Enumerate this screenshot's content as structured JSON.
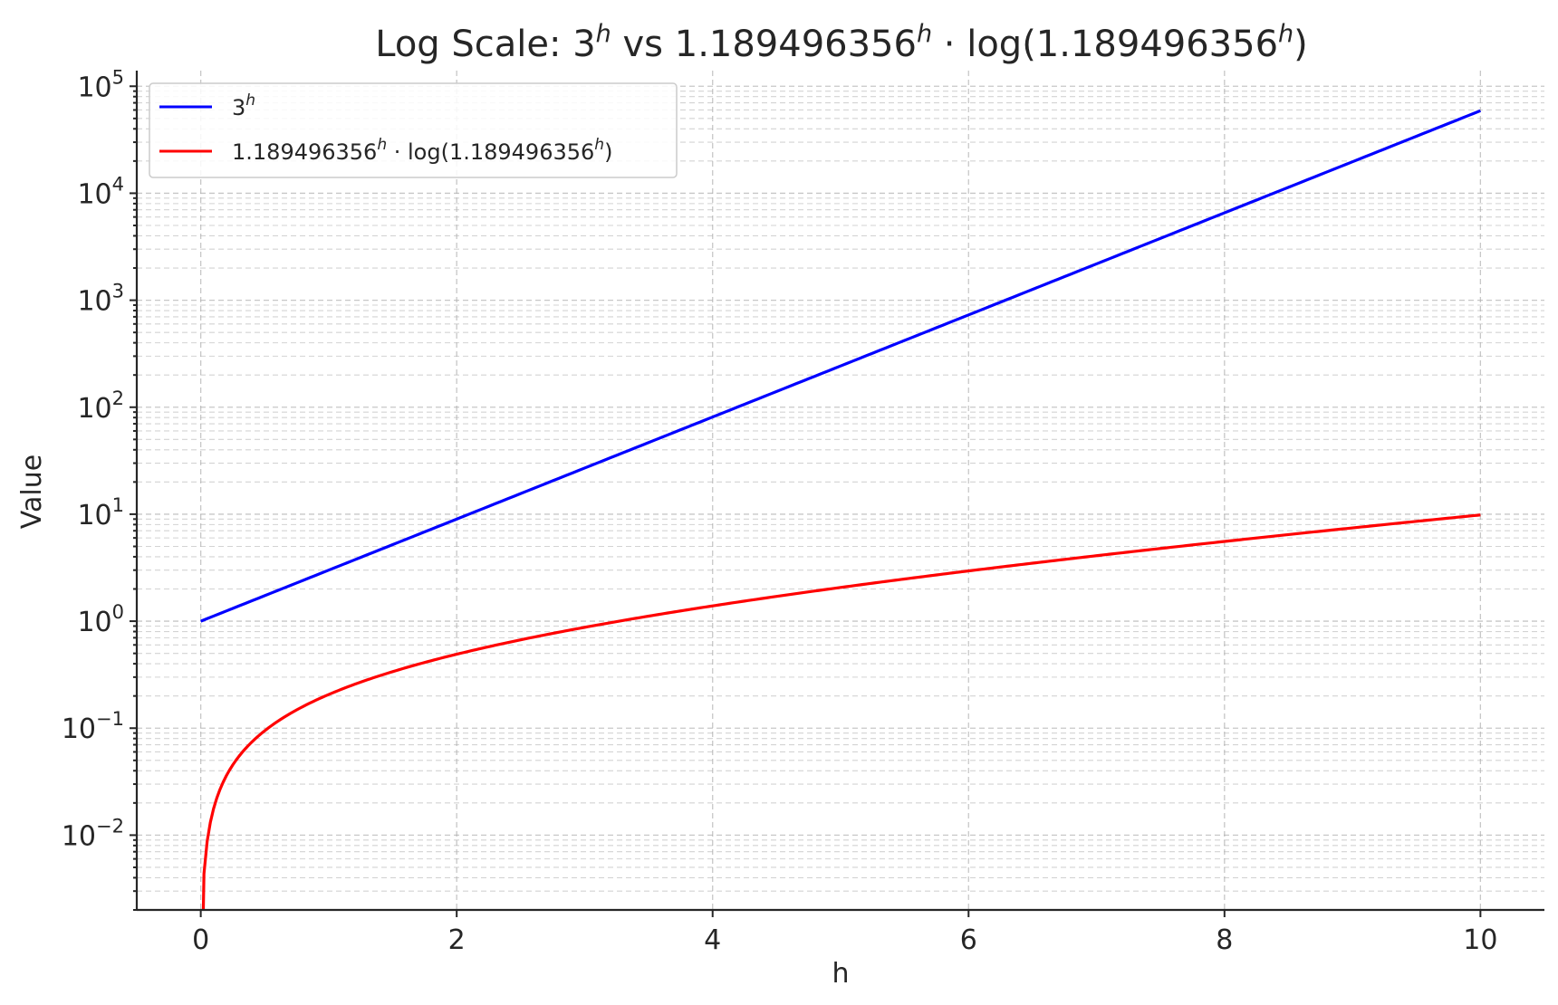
{
  "chart_data": {
    "type": "line",
    "title": "Log Scale: 3^h vs 1.189496356^h · log(1.189496356^h)",
    "title_parts": {
      "prefix": "Log Scale: 3",
      "sup1": "h",
      "mid": " vs 1.189496356",
      "sup2": "h",
      "dot": " · log(1.189496356",
      "sup3": "h",
      "suffix": ")"
    },
    "xlabel": "h",
    "ylabel": "Value",
    "xscale": "linear",
    "yscale": "log",
    "xlim": [
      -0.5,
      10.5
    ],
    "ylim": [
      0.002,
      140000
    ],
    "grid": true,
    "legend_position": "top-left",
    "x_ticks": [
      0,
      2,
      4,
      6,
      8,
      10
    ],
    "x_tick_labels": [
      "0",
      "2",
      "4",
      "6",
      "8",
      "10"
    ],
    "y_ticks": [
      {
        "value": 0.01,
        "base": "10",
        "exp": "−2"
      },
      {
        "value": 0.1,
        "base": "10",
        "exp": "−1"
      },
      {
        "value": 1,
        "base": "10",
        "exp": "0"
      },
      {
        "value": 10,
        "base": "10",
        "exp": "1"
      },
      {
        "value": 100,
        "base": "10",
        "exp": "2"
      },
      {
        "value": 1000,
        "base": "10",
        "exp": "3"
      },
      {
        "value": 10000,
        "base": "10",
        "exp": "4"
      },
      {
        "value": 100000,
        "base": "10",
        "exp": "5"
      }
    ],
    "series": [
      {
        "name": "3^h",
        "legend": {
          "base": "3",
          "sup": "h",
          "rest": ""
        },
        "color": "#0000ff",
        "function": "3^h",
        "x_range": [
          0,
          10
        ],
        "samples": 201
      },
      {
        "name": "1.189496356^h · log(1.189496356^h)",
        "legend": {
          "base": "1.189496356",
          "sup": "h",
          "rest": " · log(1.189496356",
          "sup2": "h",
          "rest2": ")"
        },
        "color": "#ff0000",
        "function": "1.189496356^h * ln(1.189496356^h)",
        "x_range": [
          0,
          10
        ],
        "samples": 401
      }
    ],
    "key_points": {
      "3^h": [
        [
          0,
          1
        ],
        [
          2,
          9
        ],
        [
          4,
          81
        ],
        [
          6,
          729
        ],
        [
          8,
          6561
        ],
        [
          10,
          59049
        ]
      ],
      "1.189496356^h · log(1.189496356^h)": [
        [
          1,
          0.206
        ],
        [
          2,
          0.49
        ],
        [
          4,
          1.39
        ],
        [
          6,
          2.94
        ],
        [
          8,
          5.56
        ],
        [
          10,
          9.83
        ]
      ]
    }
  }
}
